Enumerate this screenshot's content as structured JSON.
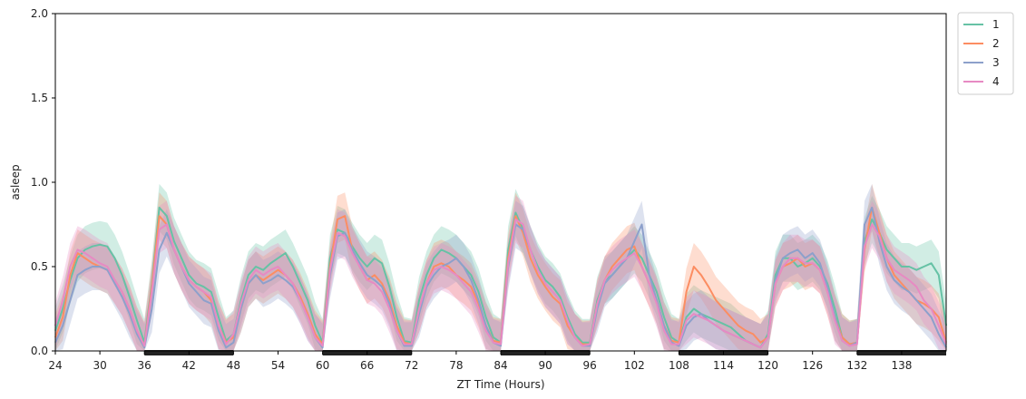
{
  "chart_data": {
    "type": "line",
    "xlabel": "ZT Time (Hours)",
    "ylabel": "asleep",
    "xlim": [
      24,
      144
    ],
    "ylim": [
      0,
      2.0
    ],
    "xticks": [
      24,
      30,
      36,
      42,
      48,
      54,
      60,
      66,
      72,
      78,
      84,
      90,
      96,
      102,
      108,
      114,
      120,
      126,
      132,
      138
    ],
    "yticks": [
      "0.0",
      "0.5",
      "1.0",
      "1.5",
      "2.0"
    ],
    "grid": false,
    "legend_position": "outside-top-right",
    "dark_periods": [
      [
        36,
        48
      ],
      [
        60,
        72
      ],
      [
        84,
        96
      ],
      [
        108,
        120
      ],
      [
        132,
        144
      ]
    ],
    "shaded_band": "confidence interval",
    "series": [
      {
        "name": "1",
        "color": "#66c2a5",
        "x": [
          24,
          25,
          26,
          27,
          28,
          29,
          30,
          31,
          32,
          33,
          34,
          35,
          36,
          37,
          38,
          39,
          40,
          41,
          42,
          43,
          44,
          45,
          46,
          47,
          48,
          49,
          50,
          51,
          52,
          53,
          54,
          55,
          56,
          57,
          58,
          59,
          60,
          61,
          62,
          63,
          64,
          65,
          66,
          67,
          68,
          69,
          70,
          71,
          72,
          73,
          74,
          75,
          76,
          77,
          78,
          79,
          80,
          81,
          82,
          83,
          84,
          85,
          86,
          87,
          88,
          89,
          90,
          91,
          92,
          93,
          94,
          95,
          96,
          97,
          98,
          99,
          100,
          101,
          102,
          103,
          104,
          105,
          106,
          107,
          108,
          109,
          110,
          111,
          112,
          113,
          114,
          115,
          116,
          117,
          118,
          119,
          120,
          121,
          122,
          123,
          124,
          125,
          126,
          127,
          128,
          129,
          130,
          131,
          132,
          133,
          134,
          135,
          136,
          137,
          138,
          139,
          140,
          141,
          142,
          143,
          144
        ],
        "y": [
          0.12,
          0.25,
          0.42,
          0.55,
          0.6,
          0.62,
          0.63,
          0.62,
          0.55,
          0.45,
          0.32,
          0.18,
          0.05,
          0.4,
          0.85,
          0.8,
          0.65,
          0.55,
          0.45,
          0.4,
          0.38,
          0.35,
          0.2,
          0.06,
          0.1,
          0.3,
          0.45,
          0.5,
          0.48,
          0.52,
          0.55,
          0.58,
          0.5,
          0.4,
          0.3,
          0.15,
          0.05,
          0.55,
          0.72,
          0.7,
          0.62,
          0.55,
          0.5,
          0.55,
          0.52,
          0.38,
          0.2,
          0.06,
          0.05,
          0.3,
          0.45,
          0.55,
          0.6,
          0.58,
          0.55,
          0.5,
          0.45,
          0.35,
          0.2,
          0.08,
          0.05,
          0.6,
          0.82,
          0.72,
          0.6,
          0.5,
          0.42,
          0.38,
          0.32,
          0.2,
          0.1,
          0.05,
          0.05,
          0.3,
          0.42,
          0.45,
          0.5,
          0.55,
          0.6,
          0.55,
          0.45,
          0.35,
          0.2,
          0.08,
          0.05,
          0.2,
          0.25,
          0.22,
          0.2,
          0.18,
          0.16,
          0.14,
          0.1,
          0.06,
          0.04,
          0.02,
          0.1,
          0.45,
          0.55,
          0.55,
          0.5,
          0.52,
          0.55,
          0.5,
          0.4,
          0.25,
          0.08,
          0.04,
          0.05,
          0.65,
          0.78,
          0.7,
          0.6,
          0.55,
          0.5,
          0.5,
          0.48,
          0.5,
          0.52,
          0.45,
          0.15
        ]
      },
      {
        "name": "2",
        "color": "#fc8d62",
        "x": [
          24,
          25,
          26,
          27,
          28,
          29,
          30,
          31,
          32,
          33,
          34,
          35,
          36,
          37,
          38,
          39,
          40,
          41,
          42,
          43,
          44,
          45,
          46,
          47,
          48,
          49,
          50,
          51,
          52,
          53,
          54,
          55,
          56,
          57,
          58,
          59,
          60,
          61,
          62,
          63,
          64,
          65,
          66,
          67,
          68,
          69,
          70,
          71,
          72,
          73,
          74,
          75,
          76,
          77,
          78,
          79,
          80,
          81,
          82,
          83,
          84,
          85,
          86,
          87,
          88,
          89,
          90,
          91,
          92,
          93,
          94,
          95,
          96,
          97,
          98,
          99,
          100,
          101,
          102,
          103,
          104,
          105,
          106,
          107,
          108,
          109,
          110,
          111,
          112,
          113,
          114,
          115,
          116,
          117,
          118,
          119,
          120,
          121,
          122,
          123,
          124,
          125,
          126,
          127,
          128,
          129,
          130,
          131,
          132,
          133,
          134,
          135,
          136,
          137,
          138,
          139,
          140,
          141,
          142,
          143,
          144
        ],
        "y": [
          0.08,
          0.2,
          0.45,
          0.58,
          0.55,
          0.52,
          0.5,
          0.48,
          0.42,
          0.35,
          0.25,
          0.12,
          0.03,
          0.38,
          0.8,
          0.75,
          0.6,
          0.5,
          0.42,
          0.38,
          0.35,
          0.3,
          0.15,
          0.05,
          0.08,
          0.25,
          0.4,
          0.45,
          0.42,
          0.45,
          0.48,
          0.45,
          0.4,
          0.32,
          0.22,
          0.1,
          0.04,
          0.5,
          0.78,
          0.8,
          0.6,
          0.5,
          0.42,
          0.45,
          0.4,
          0.3,
          0.15,
          0.05,
          0.04,
          0.25,
          0.4,
          0.5,
          0.52,
          0.5,
          0.45,
          0.42,
          0.38,
          0.28,
          0.15,
          0.06,
          0.05,
          0.55,
          0.8,
          0.7,
          0.55,
          0.45,
          0.38,
          0.32,
          0.28,
          0.15,
          0.08,
          0.04,
          0.04,
          0.28,
          0.42,
          0.5,
          0.55,
          0.6,
          0.62,
          0.5,
          0.4,
          0.3,
          0.15,
          0.06,
          0.05,
          0.35,
          0.5,
          0.45,
          0.38,
          0.3,
          0.25,
          0.2,
          0.15,
          0.12,
          0.1,
          0.05,
          0.08,
          0.4,
          0.5,
          0.52,
          0.55,
          0.5,
          0.52,
          0.48,
          0.35,
          0.2,
          0.08,
          0.04,
          0.05,
          0.6,
          0.85,
          0.7,
          0.55,
          0.45,
          0.4,
          0.35,
          0.3,
          0.28,
          0.25,
          0.2,
          0.05
        ]
      },
      {
        "name": "3",
        "color": "#8da0cb",
        "x": [
          24,
          25,
          26,
          27,
          28,
          29,
          30,
          31,
          32,
          33,
          34,
          35,
          36,
          37,
          38,
          39,
          40,
          41,
          42,
          43,
          44,
          45,
          46,
          47,
          48,
          49,
          50,
          51,
          52,
          53,
          54,
          55,
          56,
          57,
          58,
          59,
          60,
          61,
          62,
          63,
          64,
          65,
          66,
          67,
          68,
          69,
          70,
          71,
          72,
          73,
          74,
          75,
          76,
          77,
          78,
          79,
          80,
          81,
          82,
          83,
          84,
          85,
          86,
          87,
          88,
          89,
          90,
          91,
          92,
          93,
          94,
          95,
          96,
          97,
          98,
          99,
          100,
          101,
          102,
          103,
          104,
          105,
          106,
          107,
          108,
          109,
          110,
          111,
          112,
          113,
          114,
          115,
          116,
          117,
          118,
          119,
          120,
          121,
          122,
          123,
          124,
          125,
          126,
          127,
          128,
          129,
          130,
          131,
          132,
          133,
          134,
          135,
          136,
          137,
          138,
          139,
          140,
          141,
          142,
          143,
          144
        ],
        "y": [
          0.05,
          0.15,
          0.3,
          0.45,
          0.48,
          0.5,
          0.5,
          0.48,
          0.4,
          0.32,
          0.22,
          0.1,
          0.02,
          0.25,
          0.6,
          0.7,
          0.6,
          0.5,
          0.4,
          0.35,
          0.3,
          0.28,
          0.12,
          0.02,
          0.05,
          0.25,
          0.4,
          0.45,
          0.4,
          0.42,
          0.45,
          0.42,
          0.38,
          0.3,
          0.2,
          0.08,
          0.02,
          0.45,
          0.68,
          0.7,
          0.6,
          0.52,
          0.45,
          0.42,
          0.38,
          0.28,
          0.12,
          0.03,
          0.03,
          0.22,
          0.38,
          0.45,
          0.5,
          0.52,
          0.55,
          0.5,
          0.42,
          0.3,
          0.15,
          0.05,
          0.03,
          0.5,
          0.75,
          0.72,
          0.6,
          0.48,
          0.4,
          0.35,
          0.3,
          0.18,
          0.08,
          0.03,
          0.03,
          0.25,
          0.4,
          0.45,
          0.5,
          0.55,
          0.65,
          0.75,
          0.45,
          0.3,
          0.15,
          0.05,
          0.03,
          0.15,
          0.2,
          0.22,
          0.18,
          0.15,
          0.12,
          0.1,
          0.08,
          0.06,
          0.04,
          0.02,
          0.08,
          0.42,
          0.55,
          0.58,
          0.6,
          0.55,
          0.58,
          0.52,
          0.38,
          0.2,
          0.06,
          0.03,
          0.05,
          0.75,
          0.85,
          0.65,
          0.5,
          0.42,
          0.38,
          0.35,
          0.3,
          0.25,
          0.2,
          0.1,
          0.02
        ]
      },
      {
        "name": "4",
        "color": "#e78ac3",
        "x": [
          24,
          25,
          26,
          27,
          28,
          29,
          30,
          31,
          32,
          33,
          34,
          35,
          36,
          37,
          38,
          39,
          40,
          41,
          42,
          43,
          44,
          45,
          46,
          47,
          48,
          49,
          50,
          51,
          52,
          53,
          54,
          55,
          56,
          57,
          58,
          59,
          60,
          61,
          62,
          63,
          64,
          65,
          66,
          67,
          68,
          69,
          70,
          71,
          72,
          73,
          74,
          75,
          76,
          77,
          78,
          79,
          80,
          81,
          82,
          83,
          84,
          85,
          86,
          87,
          88,
          89,
          90,
          91,
          92,
          93,
          94,
          95,
          96,
          97,
          98,
          99,
          100,
          101,
          102,
          103,
          104,
          105,
          106,
          107,
          108,
          109,
          110,
          111,
          112,
          113,
          114,
          115,
          116,
          117,
          118,
          119,
          120,
          121,
          122,
          123,
          124,
          125,
          126,
          127,
          128,
          129,
          130,
          131,
          132,
          133,
          134,
          135,
          136,
          137,
          138,
          139,
          140,
          141,
          142,
          143,
          144
        ],
        "y": [
          0.15,
          0.3,
          0.5,
          0.6,
          0.58,
          0.55,
          0.52,
          0.5,
          0.42,
          0.35,
          0.25,
          0.12,
          0.03,
          0.35,
          0.72,
          0.75,
          0.6,
          0.5,
          0.42,
          0.38,
          0.35,
          0.32,
          0.15,
          0.04,
          0.1,
          0.28,
          0.42,
          0.48,
          0.45,
          0.48,
          0.5,
          0.45,
          0.4,
          0.3,
          0.2,
          0.08,
          0.03,
          0.48,
          0.7,
          0.68,
          0.58,
          0.5,
          0.42,
          0.4,
          0.35,
          0.25,
          0.12,
          0.04,
          0.04,
          0.25,
          0.4,
          0.48,
          0.5,
          0.48,
          0.45,
          0.4,
          0.35,
          0.25,
          0.12,
          0.05,
          0.04,
          0.52,
          0.78,
          0.75,
          0.6,
          0.48,
          0.4,
          0.35,
          0.3,
          0.18,
          0.08,
          0.03,
          0.04,
          0.28,
          0.42,
          0.48,
          0.52,
          0.55,
          0.58,
          0.5,
          0.4,
          0.28,
          0.12,
          0.04,
          0.04,
          0.18,
          0.22,
          0.2,
          0.18,
          0.15,
          0.12,
          0.1,
          0.08,
          0.06,
          0.04,
          0.02,
          0.08,
          0.4,
          0.5,
          0.55,
          0.55,
          0.52,
          0.52,
          0.48,
          0.35,
          0.18,
          0.06,
          0.03,
          0.04,
          0.62,
          0.75,
          0.68,
          0.55,
          0.48,
          0.45,
          0.42,
          0.38,
          0.3,
          0.25,
          0.15,
          0.04
        ]
      }
    ]
  }
}
